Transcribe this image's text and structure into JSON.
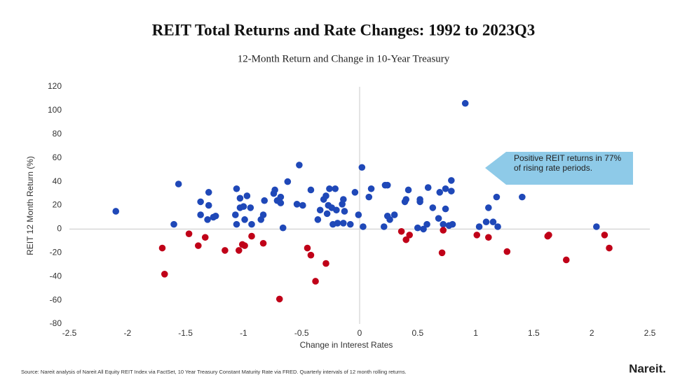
{
  "chart_data": {
    "type": "scatter",
    "title": "REIT Total Returns and Rate Changes: 1992 to 2023Q3",
    "subtitle": "12-Month Return and Change in 10-Year Treasury",
    "x_label": "Change in Interest Rates",
    "y_label": "REIT 12 Month Return (%)",
    "xlim": [
      -2.5,
      2.5
    ],
    "xticks": [
      -2.5,
      -2,
      -1.5,
      -1,
      -0.5,
      0,
      0.5,
      1,
      1.5,
      2,
      2.5
    ],
    "ylim": [
      -80,
      120
    ],
    "yticks": [
      -80,
      -60,
      -40,
      -20,
      0,
      20,
      40,
      60,
      80,
      100,
      120
    ],
    "series": [
      {
        "color": "#1f48b8",
        "x": [
          -2.1,
          -1.56,
          -1.6,
          -1.37,
          -1.37,
          -1.3,
          -1.3,
          -1.31,
          -1.26,
          -1.24,
          -1.06,
          -1.07,
          -1.06,
          -1.03,
          -1.03,
          -1.0,
          -0.97,
          -0.99,
          -0.94,
          -0.93,
          -0.85,
          -0.83,
          -0.82,
          -0.74,
          -0.73,
          -0.71,
          -0.68,
          -0.68,
          -0.66,
          -0.62,
          -0.54,
          -0.52,
          -0.49,
          -0.42,
          -0.36,
          -0.34,
          -0.31,
          -0.29,
          -0.28,
          -0.27,
          -0.26,
          -0.24,
          -0.23,
          -0.21,
          -0.2,
          -0.19,
          -0.15,
          -0.14,
          -0.14,
          -0.13,
          -0.08,
          -0.04,
          -0.01,
          0.02,
          0.03,
          0.08,
          0.1,
          0.21,
          0.22,
          0.24,
          0.24,
          0.26,
          0.3,
          0.39,
          0.4,
          0.42,
          0.5,
          0.52,
          0.52,
          0.55,
          0.58,
          0.59,
          0.63,
          0.68,
          0.69,
          0.72,
          0.74,
          0.74,
          0.77,
          0.79,
          0.79,
          0.8,
          0.91,
          1.03,
          1.09,
          1.11,
          1.15,
          1.18,
          1.19,
          1.4,
          2.04
        ],
        "y": [
          15,
          38,
          4,
          23,
          12,
          31,
          20,
          8,
          10,
          11,
          34,
          12,
          4,
          26,
          18,
          19,
          28,
          8,
          18,
          4,
          8,
          12,
          24,
          30,
          33,
          24,
          27,
          22,
          1,
          40,
          21,
          54,
          20,
          33,
          8,
          16,
          25,
          28,
          13,
          20,
          34,
          18,
          4,
          34,
          16,
          5,
          21,
          25,
          5,
          15,
          4,
          31,
          12,
          52,
          2,
          27,
          34,
          2,
          37,
          37,
          11,
          8,
          12,
          23,
          25,
          33,
          1,
          25,
          23,
          0,
          4,
          35,
          18,
          9,
          31,
          4,
          34,
          17,
          3,
          32,
          41,
          4,
          106,
          2,
          6,
          18,
          6,
          27,
          2,
          27,
          2
        ]
      },
      {
        "color": "#c00018",
        "x": [
          -1.7,
          -1.68,
          -1.47,
          -1.39,
          -1.33,
          -1.16,
          -1.04,
          -1.01,
          -0.99,
          -0.93,
          -0.83,
          -0.69,
          -0.45,
          -0.42,
          -0.38,
          -0.29,
          0.36,
          0.4,
          0.43,
          0.71,
          0.72,
          1.01,
          1.11,
          1.27,
          1.62,
          1.63,
          1.78,
          2.11,
          2.15
        ],
        "y": [
          -16,
          -38,
          -4,
          -14,
          -7,
          -18,
          -18,
          -13,
          -14,
          -6,
          -12,
          -59,
          -16,
          -22,
          -44,
          -29,
          -2,
          -9,
          -5,
          -20,
          -1,
          -5,
          -7,
          -19,
          -6,
          -5,
          -26,
          -5,
          -16
        ]
      }
    ],
    "annotations": [
      {
        "text": "Positive REIT returns in 77% of rising rate periods."
      }
    ],
    "source": "Source: Nareit analysis of Nareit All Equity REIT Index via FactSet, 10 Year Treasury Constant Maturity Rate via FRED. Quarterly intervals of 12 month rolling returns.",
    "logo": "Nareit."
  }
}
